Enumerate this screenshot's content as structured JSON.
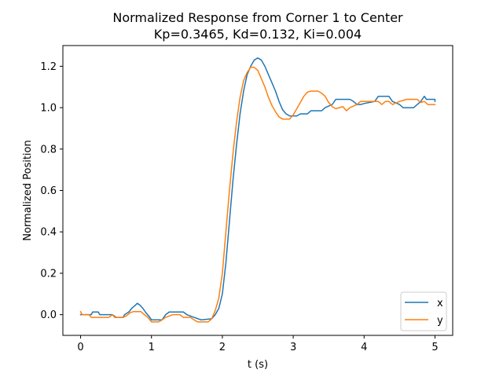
{
  "chart_data": {
    "type": "line",
    "title": "Normalized Response from Corner 1 to Center",
    "subtitle": "Kp=0.3465, Kd=0.132, Ki=0.004",
    "xlabel": "t (s)",
    "ylabel": "Normalized Position",
    "xlim": [
      -0.25,
      5.25
    ],
    "ylim": [
      -0.1,
      1.3
    ],
    "xticks": [
      0,
      1,
      2,
      3,
      4,
      5
    ],
    "xtick_labels": [
      "0",
      "1",
      "2",
      "3",
      "4",
      "5"
    ],
    "yticks": [
      0.0,
      0.2,
      0.4,
      0.6,
      0.8,
      1.0,
      1.2
    ],
    "ytick_labels": [
      "0.0",
      "0.2",
      "0.4",
      "0.6",
      "0.8",
      "1.0",
      "1.2"
    ],
    "grid": false,
    "legend_position": "bottom-right",
    "series": [
      {
        "name": "x",
        "color": "#1f77b4",
        "points": [
          [
            0.0,
            0.0
          ],
          [
            0.15,
            0.0
          ],
          [
            0.17,
            0.013
          ],
          [
            0.25,
            0.013
          ],
          [
            0.27,
            0.0
          ],
          [
            0.45,
            0.0
          ],
          [
            0.5,
            -0.013
          ],
          [
            0.6,
            -0.013
          ],
          [
            0.62,
            0.0
          ],
          [
            0.68,
            0.013
          ],
          [
            0.72,
            0.03
          ],
          [
            0.77,
            0.045
          ],
          [
            0.8,
            0.055
          ],
          [
            0.84,
            0.045
          ],
          [
            0.88,
            0.03
          ],
          [
            0.92,
            0.01
          ],
          [
            0.97,
            -0.01
          ],
          [
            1.0,
            -0.025
          ],
          [
            1.15,
            -0.025
          ],
          [
            1.2,
            0.0
          ],
          [
            1.25,
            0.013
          ],
          [
            1.45,
            0.013
          ],
          [
            1.5,
            0.0
          ],
          [
            1.6,
            -0.013
          ],
          [
            1.7,
            -0.025
          ],
          [
            1.85,
            -0.02
          ],
          [
            1.9,
            0.0
          ],
          [
            1.95,
            0.03
          ],
          [
            2.0,
            0.1
          ],
          [
            2.05,
            0.25
          ],
          [
            2.1,
            0.45
          ],
          [
            2.15,
            0.65
          ],
          [
            2.2,
            0.82
          ],
          [
            2.25,
            0.97
          ],
          [
            2.3,
            1.08
          ],
          [
            2.35,
            1.16
          ],
          [
            2.4,
            1.2
          ],
          [
            2.45,
            1.23
          ],
          [
            2.5,
            1.24
          ],
          [
            2.55,
            1.23
          ],
          [
            2.6,
            1.2
          ],
          [
            2.65,
            1.16
          ],
          [
            2.7,
            1.12
          ],
          [
            2.75,
            1.08
          ],
          [
            2.8,
            1.03
          ],
          [
            2.85,
            0.99
          ],
          [
            2.9,
            0.97
          ],
          [
            2.95,
            0.96
          ],
          [
            3.05,
            0.96
          ],
          [
            3.1,
            0.97
          ],
          [
            3.2,
            0.97
          ],
          [
            3.25,
            0.985
          ],
          [
            3.4,
            0.985
          ],
          [
            3.45,
            1.0
          ],
          [
            3.55,
            1.015
          ],
          [
            3.6,
            1.04
          ],
          [
            3.8,
            1.04
          ],
          [
            3.85,
            1.03
          ],
          [
            3.9,
            1.015
          ],
          [
            3.95,
            1.015
          ],
          [
            4.0,
            1.02
          ],
          [
            4.15,
            1.03
          ],
          [
            4.2,
            1.055
          ],
          [
            4.35,
            1.055
          ],
          [
            4.4,
            1.03
          ],
          [
            4.5,
            1.015
          ],
          [
            4.55,
            1.0
          ],
          [
            4.7,
            1.0
          ],
          [
            4.75,
            1.015
          ],
          [
            4.8,
            1.03
          ],
          [
            4.85,
            1.055
          ],
          [
            4.88,
            1.04
          ],
          [
            5.0,
            1.04
          ],
          [
            5.0,
            1.03
          ]
        ]
      },
      {
        "name": "y",
        "color": "#ff7f0e",
        "points": [
          [
            0.0,
            0.015
          ],
          [
            0.02,
            0.0
          ],
          [
            0.12,
            0.0
          ],
          [
            0.15,
            -0.013
          ],
          [
            0.4,
            -0.013
          ],
          [
            0.45,
            0.0
          ],
          [
            0.48,
            -0.013
          ],
          [
            0.6,
            -0.013
          ],
          [
            0.65,
            -0.005
          ],
          [
            0.7,
            0.01
          ],
          [
            0.75,
            0.015
          ],
          [
            0.85,
            0.015
          ],
          [
            0.9,
            0.0
          ],
          [
            0.95,
            -0.013
          ],
          [
            1.0,
            -0.035
          ],
          [
            1.1,
            -0.035
          ],
          [
            1.15,
            -0.025
          ],
          [
            1.2,
            -0.013
          ],
          [
            1.3,
            0.0
          ],
          [
            1.4,
            0.0
          ],
          [
            1.45,
            -0.013
          ],
          [
            1.55,
            -0.013
          ],
          [
            1.6,
            -0.025
          ],
          [
            1.65,
            -0.035
          ],
          [
            1.8,
            -0.035
          ],
          [
            1.85,
            -0.02
          ],
          [
            1.9,
            0.02
          ],
          [
            1.95,
            0.08
          ],
          [
            2.0,
            0.2
          ],
          [
            2.05,
            0.4
          ],
          [
            2.1,
            0.6
          ],
          [
            2.15,
            0.78
          ],
          [
            2.2,
            0.93
          ],
          [
            2.25,
            1.05
          ],
          [
            2.3,
            1.13
          ],
          [
            2.35,
            1.17
          ],
          [
            2.4,
            1.195
          ],
          [
            2.45,
            1.195
          ],
          [
            2.5,
            1.18
          ],
          [
            2.55,
            1.14
          ],
          [
            2.6,
            1.1
          ],
          [
            2.65,
            1.05
          ],
          [
            2.7,
            1.01
          ],
          [
            2.75,
            0.98
          ],
          [
            2.8,
            0.955
          ],
          [
            2.85,
            0.945
          ],
          [
            2.95,
            0.945
          ],
          [
            3.0,
            0.965
          ],
          [
            3.05,
            0.995
          ],
          [
            3.1,
            1.025
          ],
          [
            3.15,
            1.055
          ],
          [
            3.2,
            1.075
          ],
          [
            3.25,
            1.08
          ],
          [
            3.35,
            1.08
          ],
          [
            3.4,
            1.07
          ],
          [
            3.45,
            1.055
          ],
          [
            3.5,
            1.025
          ],
          [
            3.55,
            1.005
          ],
          [
            3.6,
            0.995
          ],
          [
            3.7,
            1.005
          ],
          [
            3.75,
            0.985
          ],
          [
            3.8,
            1.0
          ],
          [
            3.9,
            1.015
          ],
          [
            3.95,
            1.03
          ],
          [
            4.2,
            1.03
          ],
          [
            4.25,
            1.015
          ],
          [
            4.3,
            1.03
          ],
          [
            4.35,
            1.03
          ],
          [
            4.4,
            1.015
          ],
          [
            4.5,
            1.03
          ],
          [
            4.6,
            1.04
          ],
          [
            4.75,
            1.04
          ],
          [
            4.8,
            1.025
          ],
          [
            4.85,
            1.03
          ],
          [
            4.9,
            1.015
          ],
          [
            5.0,
            1.015
          ]
        ]
      }
    ]
  }
}
